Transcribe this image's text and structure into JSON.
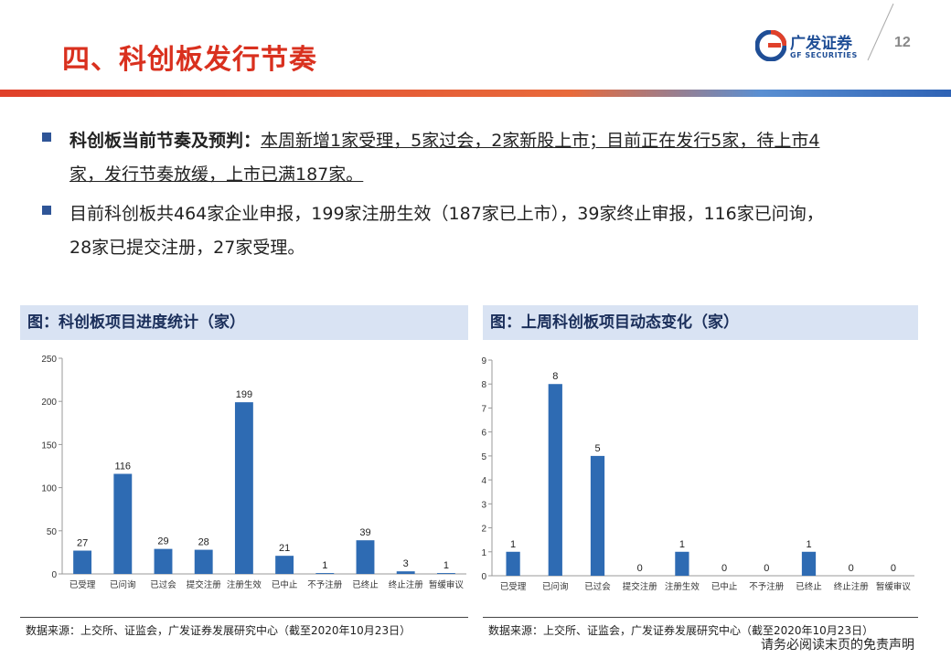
{
  "header": {
    "title": "四、科创板发行节奏",
    "logo_cn": "广发证券",
    "logo_en": "GF SECURITIES",
    "page_number": "12"
  },
  "bullets": [
    {
      "bold_prefix": "科创板当前节奏及预判：",
      "line1": "本周新增1家受理，5家过会，2家新股上市；目前正在发行5家，待上市4",
      "line2": "家，发行节奏放缓，上市已满187家。"
    },
    {
      "line1": "目前科创板共464家企业申报，199家注册生效（187家已上市），39家终止审报，116家已问询，",
      "line2": "28家已提交注册，27家受理。"
    }
  ],
  "colors": {
    "bar": "#2e6bb3",
    "title_red": "#d9301e",
    "panel_bg": "#d9e3f3"
  },
  "chart_data": [
    {
      "type": "bar",
      "title": "图：科创板项目进度统计（家）",
      "categories": [
        "已受理",
        "已问询",
        "已过会",
        "提交注册",
        "注册生效",
        "已中止",
        "不予注册",
        "已终止",
        "终止注册",
        "暂缓审议"
      ],
      "values": [
        27,
        116,
        29,
        28,
        199,
        21,
        1,
        39,
        3,
        1
      ],
      "yticks": [
        "0",
        "50",
        "100",
        "150",
        "200",
        "250"
      ],
      "ylim": [
        0,
        250
      ],
      "grid": false,
      "source": "数据来源：上交所、证监会，广发证券发展研究中心（截至2020年10月23日）"
    },
    {
      "type": "bar",
      "title": "图：上周科创板项目动态变化（家）",
      "categories": [
        "已受理",
        "已问询",
        "已过会",
        "提交注册",
        "注册生效",
        "已中止",
        "不予注册",
        "已终止",
        "终止注册",
        "暂缓审议"
      ],
      "values": [
        1,
        8,
        5,
        0,
        1,
        0,
        0,
        1,
        0,
        0
      ],
      "yticks": [
        "0",
        "1",
        "2",
        "3",
        "4",
        "5",
        "6",
        "7",
        "8",
        "9"
      ],
      "ylim": [
        0,
        9
      ],
      "grid": false,
      "source": "数据来源：上交所、证监会，广发证券发展研究中心（截至2020年10月23日）"
    }
  ],
  "footer": {
    "disclaimer": "请务必阅读末页的免责声明"
  }
}
